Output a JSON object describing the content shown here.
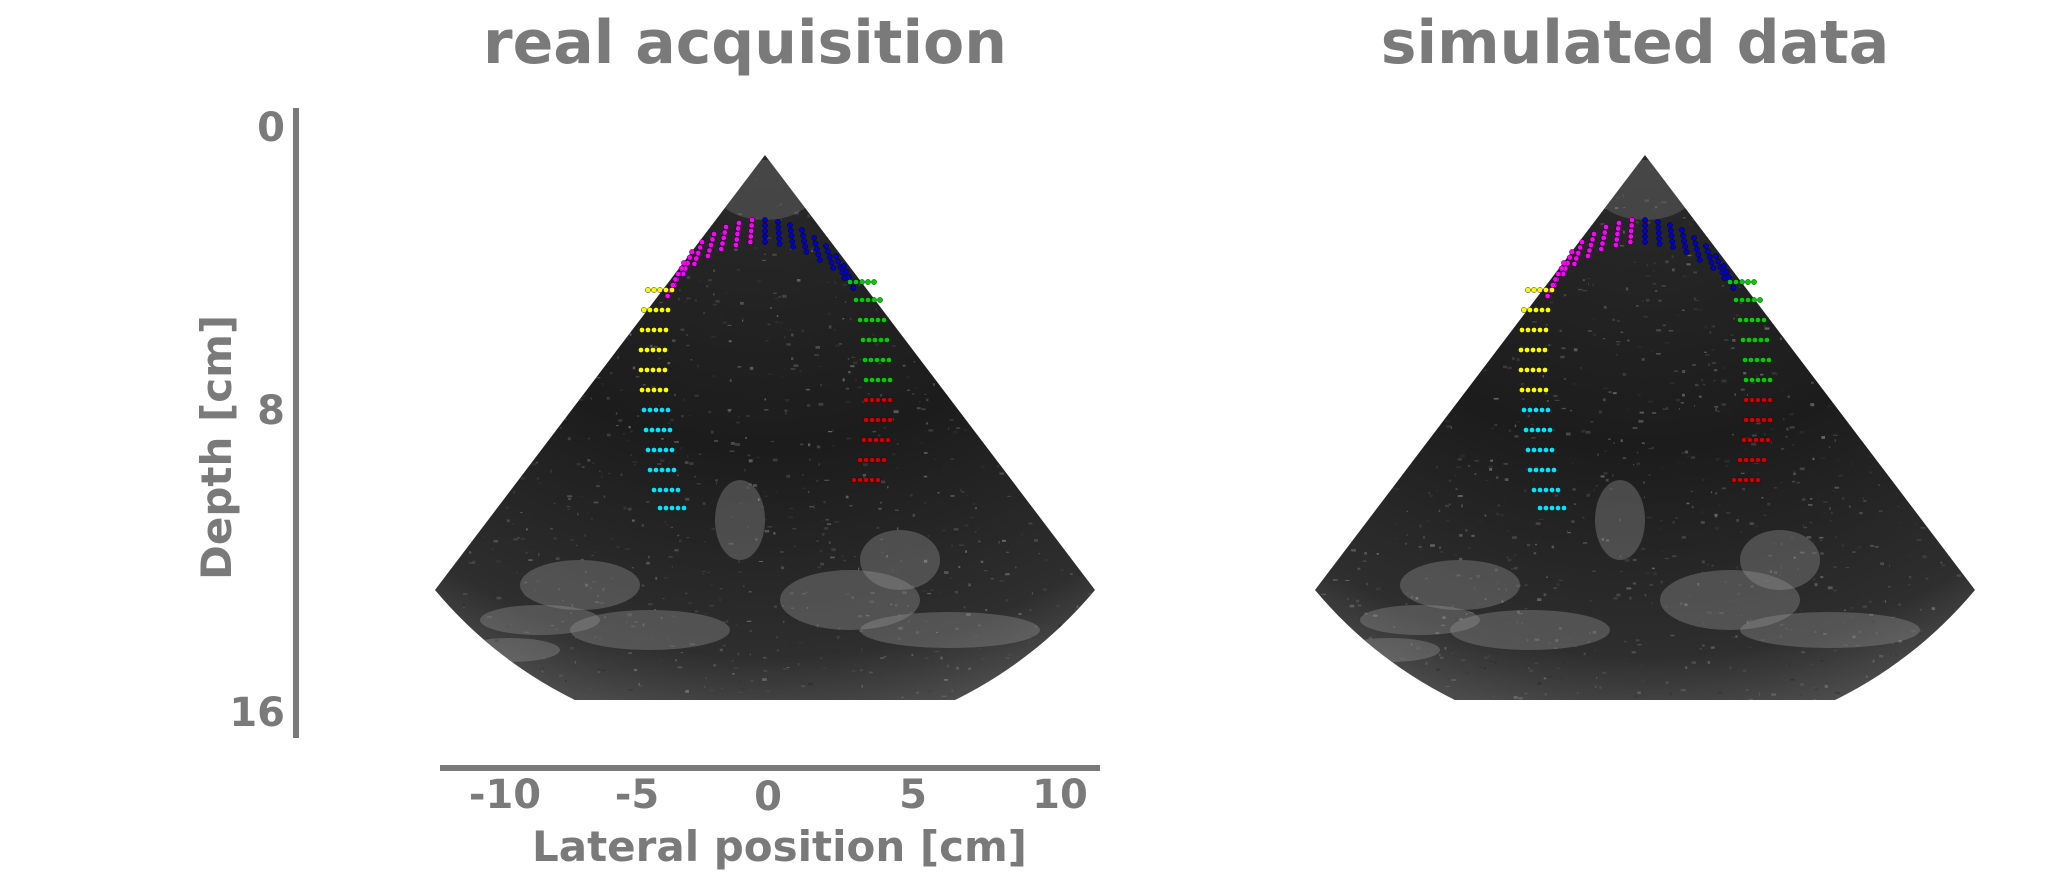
{
  "titles": {
    "left": "real acquisition",
    "right": "simulated data"
  },
  "axes": {
    "y_label": "Depth  [cm]",
    "y_ticks": [
      "0",
      "8",
      "16"
    ],
    "x_label": "Lateral position  [cm]",
    "x_ticks": [
      "-10",
      "-5",
      "0",
      "5",
      "10"
    ],
    "x_tick_values": [
      -10,
      -5,
      0,
      5,
      10
    ],
    "y_tick_values": [
      0,
      8,
      16
    ]
  },
  "colors": {
    "axis": "#7a7a7a",
    "segments": {
      "blue": "#0000cc",
      "magenta": "#ff00ff",
      "yellow": "#ffff00",
      "cyan": "#00e5ff",
      "green": "#00cc00",
      "red": "#cc0000"
    }
  },
  "images": {
    "left": "ultrasound-sector-real",
    "right": "ultrasound-sector-simulated"
  }
}
